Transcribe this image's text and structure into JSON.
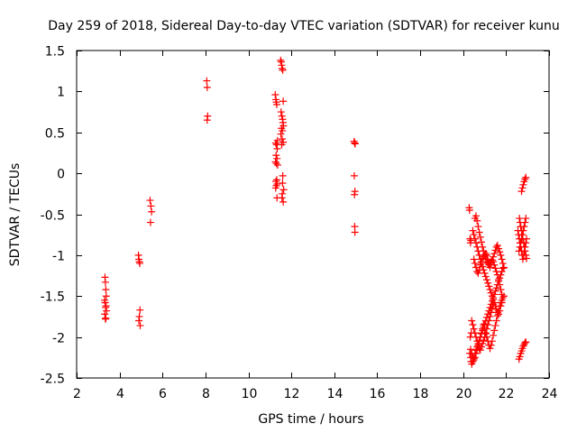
{
  "chart_data": {
    "type": "scatter",
    "title": "Day 259 of 2018, Sidereal Day-to-day VTEC variation (SDTVAR) for receiver kunu",
    "xlabel": "GPS time / hours",
    "ylabel": "SDTVAR / TECUs",
    "xlim": [
      2,
      24
    ],
    "ylim": [
      -2.5,
      1.5
    ],
    "xticks": [
      2,
      4,
      6,
      8,
      10,
      12,
      14,
      16,
      18,
      20,
      22,
      24
    ],
    "yticks": [
      -2.5,
      -2,
      -1.5,
      -1,
      -0.5,
      0,
      0.5,
      1,
      1.5
    ],
    "xtick_labels": [
      "2",
      "4",
      "6",
      "8",
      "10",
      "12",
      "14",
      "16",
      "18",
      "20",
      "22",
      "24"
    ],
    "ytick_labels": [
      "-2.5",
      "-2",
      "-1.5",
      "-1",
      "-0.5",
      "0",
      "0.5",
      "1",
      "1.5"
    ],
    "marker": "+",
    "marker_color": "#ff0000",
    "grid": false,
    "legend": "none",
    "series": [
      {
        "name": "SDTVAR",
        "x": [
          3.32,
          3.34,
          3.36,
          3.38,
          3.3,
          3.33,
          3.37,
          3.35,
          3.39,
          3.31,
          3.36,
          3.34,
          4.88,
          4.9,
          4.92,
          4.94,
          4.95,
          4.92,
          4.9,
          4.96,
          5.42,
          5.46,
          5.49,
          5.44,
          8.06,
          8.08,
          8.1,
          8.08,
          11.25,
          11.28,
          11.3,
          11.32,
          11.35,
          11.27,
          11.31,
          11.34,
          11.29,
          11.33,
          11.26,
          11.3,
          11.36,
          11.32,
          11.28,
          11.34,
          11.3,
          11.27,
          11.33,
          11.5,
          11.53,
          11.55,
          11.57,
          11.6,
          11.62,
          11.52,
          11.56,
          11.59,
          11.61,
          11.63,
          11.54,
          11.58,
          11.51,
          11.57,
          11.62,
          11.55,
          11.6,
          11.59,
          11.64,
          11.58,
          11.56,
          11.62,
          14.92,
          14.95,
          14.97,
          14.93,
          14.96,
          14.94,
          14.95,
          14.96,
          20.28,
          20.3,
          20.32,
          20.34,
          20.36,
          20.38,
          20.33,
          20.31,
          20.35,
          20.37,
          20.4,
          20.45,
          20.5,
          20.55,
          20.6,
          20.65,
          20.7,
          20.75,
          20.8,
          20.85,
          20.9,
          20.95,
          21.0,
          21.05,
          21.1,
          21.15,
          21.2,
          21.25,
          21.3,
          21.35,
          21.4,
          21.45,
          21.5,
          21.55,
          21.6,
          21.65,
          21.7,
          21.75,
          21.8,
          21.85,
          20.45,
          20.5,
          20.55,
          20.6,
          20.65,
          20.7,
          20.75,
          20.8,
          20.85,
          20.9,
          20.95,
          21.0,
          21.05,
          21.1,
          21.15,
          21.2,
          21.25,
          21.3,
          21.35,
          21.4,
          21.45,
          21.5,
          21.55,
          21.6,
          21.65,
          21.7,
          21.75,
          21.8,
          20.55,
          20.6,
          20.65,
          20.7,
          20.75,
          20.8,
          20.85,
          20.9,
          20.95,
          21.0,
          21.05,
          21.1,
          21.15,
          21.2,
          21.25,
          21.3,
          21.35,
          21.4,
          21.45,
          21.5,
          21.55,
          21.6,
          21.65,
          21.7,
          21.75,
          21.8,
          20.5,
          20.55,
          20.6,
          20.65,
          20.7,
          20.75,
          20.8,
          20.85,
          20.9,
          20.95,
          21.0,
          21.05,
          21.1,
          21.15,
          21.2,
          21.25,
          21.3,
          21.35,
          21.4,
          21.45,
          21.5,
          21.55,
          21.6,
          21.65,
          21.7,
          21.75,
          21.8,
          21.85,
          21.9,
          20.4,
          20.45,
          20.5,
          20.55,
          20.6,
          20.65,
          20.7,
          20.75,
          20.8,
          20.85,
          20.9,
          20.95,
          21.0,
          21.05,
          21.1,
          21.15,
          21.2,
          21.25,
          21.3,
          21.35,
          21.4,
          20.35,
          20.4,
          20.45,
          20.5,
          20.55,
          20.6,
          20.65,
          20.7,
          20.75,
          20.8,
          20.85,
          20.9,
          20.95,
          21.0,
          21.05,
          21.1,
          21.15,
          21.2,
          21.25,
          21.3,
          21.35,
          21.4,
          21.45,
          21.5,
          21.55,
          21.6,
          21.65,
          21.7,
          21.75,
          21.8,
          21.85,
          21.9,
          22.55,
          22.58,
          22.62,
          22.65,
          22.68,
          22.72,
          22.75,
          22.78,
          22.82,
          22.85,
          22.88,
          22.92,
          22.95,
          22.62,
          22.65,
          22.68,
          22.72,
          22.75,
          22.78,
          22.82,
          22.85,
          22.88,
          22.92,
          22.95,
          22.72,
          22.76,
          22.8,
          22.84,
          22.88,
          22.92,
          22.6,
          22.64,
          22.68,
          22.72,
          22.76,
          22.8,
          22.84,
          22.88,
          22.92,
          22.6,
          22.64,
          22.68,
          22.72,
          22.76,
          22.8,
          22.84,
          22.88,
          22.92
        ],
        "y": [
          -1.27,
          -1.33,
          -1.42,
          -1.5,
          -1.55,
          -1.58,
          -1.62,
          -1.64,
          -1.68,
          -1.72,
          -1.77,
          -1.78,
          -1.0,
          -1.05,
          -1.08,
          -1.1,
          -1.67,
          -1.75,
          -1.8,
          -1.86,
          -0.33,
          -0.4,
          -0.47,
          -0.6,
          1.13,
          1.05,
          0.7,
          0.65,
          0.96,
          0.9,
          0.87,
          0.84,
          0.4,
          0.37,
          0.35,
          0.3,
          0.22,
          0.18,
          0.14,
          0.12,
          0.1,
          -0.08,
          -0.1,
          -0.13,
          -0.15,
          -0.18,
          -0.3,
          1.38,
          1.36,
          1.32,
          1.28,
          1.26,
          0.88,
          0.75,
          0.7,
          0.66,
          0.62,
          0.58,
          0.55,
          0.52,
          0.48,
          0.42,
          0.38,
          0.35,
          -0.03,
          -0.12,
          -0.2,
          -0.25,
          -0.3,
          -0.35,
          0.39,
          0.37,
          0.36,
          -0.03,
          -0.22,
          -0.26,
          -0.65,
          -0.72,
          -0.42,
          -0.45,
          -0.8,
          -0.85,
          -0.82,
          -1.95,
          -2.0,
          -2.2,
          -2.25,
          -2.3,
          -2.33,
          -2.3,
          -2.26,
          -2.2,
          -2.16,
          -2.12,
          -2.08,
          -2.04,
          -2.0,
          -1.96,
          -1.92,
          -1.88,
          -1.84,
          -1.8,
          -1.76,
          -1.72,
          -1.68,
          -1.64,
          -1.6,
          -1.56,
          -1.52,
          -1.48,
          -1.44,
          -1.4,
          -1.36,
          -1.32,
          -1.28,
          -1.24,
          -1.2,
          -1.16,
          -0.7,
          -0.75,
          -0.8,
          -0.85,
          -0.9,
          -0.95,
          -1.0,
          -1.05,
          -1.1,
          -1.14,
          -1.18,
          -1.22,
          -1.26,
          -1.3,
          -1.34,
          -1.38,
          -1.42,
          -1.46,
          -1.5,
          -1.54,
          -1.58,
          -1.62,
          -1.66,
          -1.7,
          -1.72,
          -1.68,
          -1.62,
          -1.58,
          -0.55,
          -0.52,
          -0.58,
          -0.65,
          -0.72,
          -0.78,
          -0.84,
          -0.9,
          -0.95,
          -1.0,
          -1.05,
          -1.08,
          -1.1,
          -1.12,
          -1.1,
          -1.08,
          -1.06,
          -1.08,
          -1.12,
          -1.16,
          -1.2,
          -1.24,
          -1.3,
          -1.36,
          -1.42,
          -1.48,
          -1.05,
          -1.1,
          -1.15,
          -1.2,
          -1.22,
          -1.18,
          -1.12,
          -1.08,
          -1.04,
          -1.02,
          -1.0,
          -0.98,
          -1.0,
          -1.05,
          -1.1,
          -1.15,
          -1.1,
          -1.06,
          -1.02,
          -0.98,
          -0.94,
          -0.9,
          -0.88,
          -0.92,
          -0.96,
          -1.0,
          -1.05,
          -1.1,
          -1.15,
          -1.8,
          -1.85,
          -1.9,
          -1.95,
          -2.0,
          -2.05,
          -2.1,
          -2.14,
          -2.16,
          -2.12,
          -2.08,
          -2.04,
          -2.0,
          -1.96,
          -1.9,
          -1.85,
          -1.8,
          -1.75,
          -1.7,
          -1.65,
          -1.6,
          -2.15,
          -2.2,
          -2.25,
          -2.28,
          -2.25,
          -2.2,
          -2.15,
          -2.1,
          -2.05,
          -2.0,
          -1.95,
          -1.9,
          -1.85,
          -1.9,
          -1.95,
          -2.0,
          -2.05,
          -2.1,
          -2.14,
          -2.1,
          -2.05,
          -1.98,
          -1.92,
          -1.86,
          -1.8,
          -1.74,
          -1.68,
          -1.62,
          -1.58,
          -1.55,
          -1.52,
          -1.5,
          -0.7,
          -0.75,
          -0.8,
          -0.85,
          -0.9,
          -0.95,
          -1.0,
          -1.05,
          -1.0,
          -0.95,
          -0.9,
          -0.85,
          -0.8,
          -0.55,
          -0.6,
          -0.65,
          -0.7,
          -0.75,
          -0.8,
          -0.85,
          -0.9,
          -0.95,
          -1.0,
          -1.04,
          -0.22,
          -0.18,
          -0.14,
          -0.1,
          -0.07,
          -0.05,
          -2.27,
          -2.24,
          -2.2,
          -2.17,
          -2.14,
          -2.11,
          -2.09,
          -2.07,
          -2.06,
          -0.95,
          -0.9,
          -0.85,
          -0.8,
          -0.75,
          -0.7,
          -0.65,
          -0.6,
          -0.55
        ]
      }
    ]
  }
}
